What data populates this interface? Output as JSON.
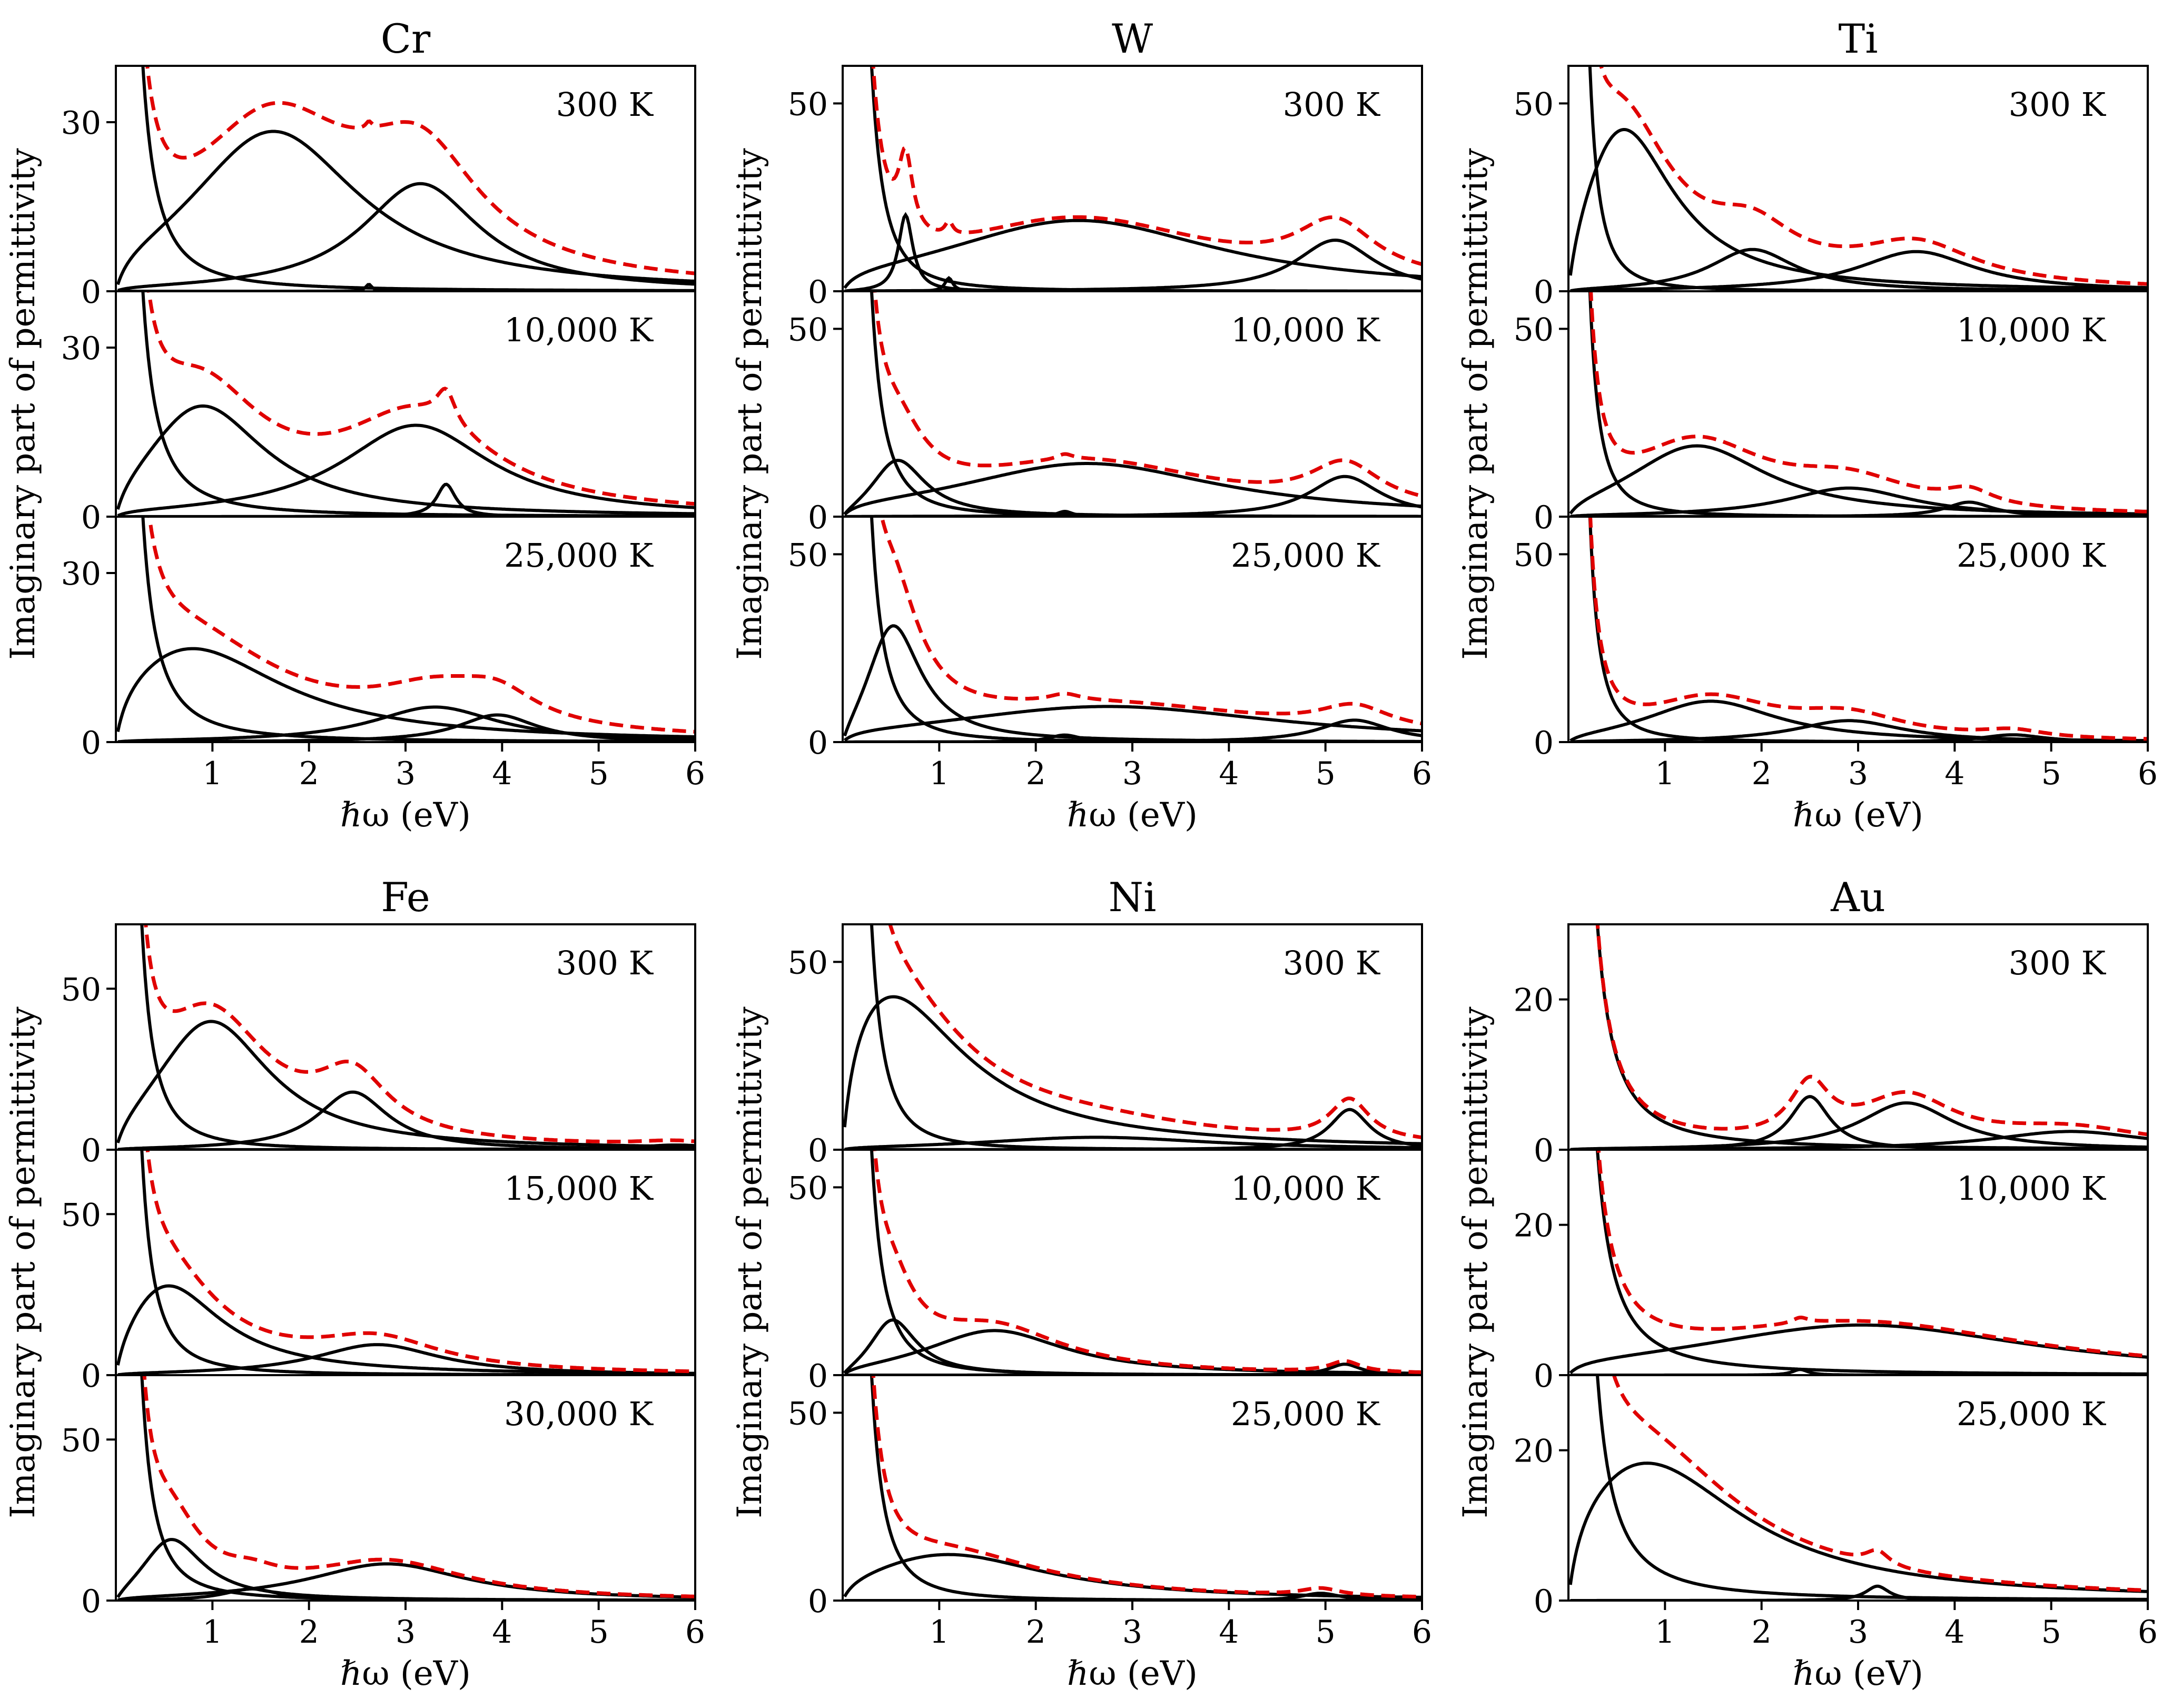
{
  "figure": {
    "ylabel": "Imaginary part of permittivity",
    "xlabel": "ℏω (eV)",
    "colors": {
      "components": "#000000",
      "total": "#e00000"
    }
  },
  "chart_data": [
    {
      "type": "line",
      "title": "Cr",
      "xlim": [
        0,
        6
      ],
      "xticks": [
        1,
        2,
        3,
        4,
        5,
        6
      ],
      "subplots": [
        {
          "label": "300 K",
          "ylim": [
            0,
            40
          ],
          "yticks": [
            0,
            30
          ],
          "drude": {
            "A": 35,
            "p": 1.9
          },
          "oscillators": [
            {
              "A": 31,
              "c": 1.6,
              "w": 1.1
            },
            {
              "A": 20,
              "c": 3.15,
              "w": 0.75
            },
            {
              "A": 1.3,
              "c": 2.62,
              "w": 0.04
            }
          ]
        },
        {
          "label": "10,000 K",
          "ylim": [
            0,
            40
          ],
          "yticks": [
            0,
            30
          ],
          "drude": {
            "A": 35,
            "p": 1.9
          },
          "oscillators": [
            {
              "A": 23,
              "c": 0.85,
              "w": 0.8
            },
            {
              "A": 17,
              "c": 3.1,
              "w": 0.95
            },
            {
              "A": 6,
              "c": 3.42,
              "w": 0.12
            }
          ]
        },
        {
          "label": "25,000 K",
          "ylim": [
            0,
            40
          ],
          "yticks": [
            0,
            30
          ],
          "drude": {
            "A": 35,
            "p": 1.9
          },
          "oscillators": [
            {
              "A": 20,
              "c": 0.65,
              "w": 1.2
            },
            {
              "A": 6.5,
              "c": 3.3,
              "w": 0.8
            },
            {
              "A": 5,
              "c": 3.95,
              "w": 0.5
            }
          ]
        }
      ]
    },
    {
      "type": "line",
      "title": "W",
      "xlim": [
        0,
        6
      ],
      "xticks": [
        1,
        2,
        3,
        4,
        5,
        6
      ],
      "subplots": [
        {
          "label": "300 K",
          "ylim": [
            0,
            60
          ],
          "yticks": [
            0,
            50
          ],
          "drude": {
            "A": 60,
            "p": 2.4
          },
          "oscillators": [
            {
              "A": 20,
              "c": 2.4,
              "w": 1.8
            },
            {
              "A": 14,
              "c": 5.1,
              "w": 0.5
            },
            {
              "A": 25,
              "c": 0.65,
              "w": 0.09
            },
            {
              "A": 4,
              "c": 1.1,
              "w": 0.05
            }
          ]
        },
        {
          "label": "10,000 K",
          "ylim": [
            0,
            60
          ],
          "yticks": [
            0,
            50
          ],
          "drude": {
            "A": 60,
            "p": 2.4
          },
          "oscillators": [
            {
              "A": 19,
              "c": 0.55,
              "w": 0.35
            },
            {
              "A": 15,
              "c": 2.5,
              "w": 1.7
            },
            {
              "A": 11,
              "c": 5.2,
              "w": 0.45
            },
            {
              "A": 1.5,
              "c": 2.3,
              "w": 0.1
            }
          ]
        },
        {
          "label": "25,000 K",
          "ylim": [
            0,
            60
          ],
          "yticks": [
            0,
            50
          ],
          "drude": {
            "A": 60,
            "p": 2.4
          },
          "oscillators": [
            {
              "A": 10,
              "c": 2.7,
              "w": 2.2
            },
            {
              "A": 6,
              "c": 5.3,
              "w": 0.45
            },
            {
              "A": 40,
              "c": 0.5,
              "w": 0.35
            },
            {
              "A": 2,
              "c": 2.3,
              "w": 0.2
            }
          ]
        }
      ]
    },
    {
      "type": "line",
      "title": "Ti",
      "xlim": [
        0,
        6
      ],
      "xticks": [
        1,
        2,
        3,
        4,
        5,
        6
      ],
      "subplots": [
        {
          "label": "300 K",
          "ylim": [
            0,
            60
          ],
          "yticks": [
            0,
            50
          ],
          "drude": {
            "A": 30,
            "p": 2.3
          },
          "oscillators": [
            {
              "A": 55,
              "c": 0.5,
              "w": 0.65
            },
            {
              "A": 12,
              "c": 1.9,
              "w": 0.55
            },
            {
              "A": 11,
              "c": 3.6,
              "w": 0.75
            }
          ]
        },
        {
          "label": "10,000 K",
          "ylim": [
            0,
            60
          ],
          "yticks": [
            0,
            50
          ],
          "drude": {
            "A": 30,
            "p": 2.3
          },
          "oscillators": [
            {
              "A": 21,
              "c": 1.3,
              "w": 0.9
            },
            {
              "A": 8,
              "c": 2.9,
              "w": 0.8
            },
            {
              "A": 4,
              "c": 4.15,
              "w": 0.3
            }
          ]
        },
        {
          "label": "25,000 K",
          "ylim": [
            0,
            60
          ],
          "yticks": [
            0,
            50
          ],
          "drude": {
            "A": 30,
            "p": 2.3
          },
          "oscillators": [
            {
              "A": 12,
              "c": 1.45,
              "w": 0.85
            },
            {
              "A": 6,
              "c": 2.9,
              "w": 0.7
            },
            {
              "A": 2,
              "c": 4.6,
              "w": 0.4
            }
          ]
        }
      ]
    },
    {
      "type": "line",
      "title": "Fe",
      "xlim": [
        0,
        6
      ],
      "xticks": [
        1,
        2,
        3,
        4,
        5,
        6
      ],
      "subplots": [
        {
          "label": "300 K",
          "ylim": [
            0,
            70
          ],
          "yticks": [
            0,
            50
          ],
          "drude": {
            "A": 55,
            "p": 2.2
          },
          "oscillators": [
            {
              "A": 46,
              "c": 0.95,
              "w": 0.75
            },
            {
              "A": 19,
              "c": 2.45,
              "w": 0.45
            },
            {
              "A": 1.5,
              "c": 5.8,
              "w": 0.5
            }
          ]
        },
        {
          "label": "15,000 K",
          "ylim": [
            0,
            70
          ],
          "yticks": [
            0,
            50
          ],
          "drude": {
            "A": 55,
            "p": 2.2
          },
          "oscillators": [
            {
              "A": 36,
              "c": 0.45,
              "w": 0.7
            },
            {
              "A": 10,
              "c": 2.7,
              "w": 0.8
            }
          ]
        },
        {
          "label": "30,000 K",
          "ylim": [
            0,
            70
          ],
          "yticks": [
            0,
            50
          ],
          "drude": {
            "A": 55,
            "p": 2.2
          },
          "oscillators": [
            {
              "A": 24,
              "c": 0.55,
              "w": 0.4
            },
            {
              "A": 12,
              "c": 2.8,
              "w": 1.0
            },
            {
              "A": 4,
              "c": 1.4,
              "w": 0.35
            }
          ]
        }
      ]
    },
    {
      "type": "line",
      "title": "Ni",
      "xlim": [
        0,
        6
      ],
      "xticks": [
        1,
        2,
        3,
        4,
        5,
        6
      ],
      "subplots": [
        {
          "label": "300 K",
          "ylim": [
            0,
            60
          ],
          "yticks": [
            0,
            50
          ],
          "drude": {
            "A": 60,
            "p": 2.4
          },
          "oscillators": [
            {
              "A": 55,
              "c": 0.3,
              "w": 1.0
            },
            {
              "A": 3.5,
              "c": 2.6,
              "w": 1.5
            },
            {
              "A": 11,
              "c": 5.25,
              "w": 0.25
            }
          ]
        },
        {
          "label": "10,000 K",
          "ylim": [
            0,
            60
          ],
          "yticks": [
            0,
            50
          ],
          "drude": {
            "A": 60,
            "p": 2.4
          },
          "oscillators": [
            {
              "A": 19,
              "c": 0.5,
              "w": 0.3
            },
            {
              "A": 13,
              "c": 1.55,
              "w": 0.9
            },
            {
              "A": 3,
              "c": 5.2,
              "w": 0.2
            }
          ]
        },
        {
          "label": "25,000 K",
          "ylim": [
            0,
            60
          ],
          "yticks": [
            0,
            50
          ],
          "drude": {
            "A": 60,
            "p": 2.4
          },
          "oscillators": [
            {
              "A": 14,
              "c": 1.0,
              "w": 1.3
            },
            {
              "A": 2,
              "c": 4.95,
              "w": 0.25
            }
          ]
        }
      ]
    },
    {
      "type": "line",
      "title": "Au",
      "xlim": [
        0,
        6
      ],
      "xticks": [
        1,
        2,
        3,
        4,
        5,
        6
      ],
      "subplots": [
        {
          "label": "300 K",
          "ylim": [
            0,
            30
          ],
          "yticks": [
            0,
            20
          ],
          "drude": {
            "A": 30,
            "p": 1.75
          },
          "oscillators": [
            {
              "A": 7.5,
              "c": 2.5,
              "w": 0.25
            },
            {
              "A": 6.5,
              "c": 3.5,
              "w": 0.6
            },
            {
              "A": 2.5,
              "c": 5.2,
              "w": 1.0
            }
          ]
        },
        {
          "label": "10,000 K",
          "ylim": [
            0,
            30
          ],
          "yticks": [
            0,
            20
          ],
          "drude": {
            "A": 30,
            "p": 1.75
          },
          "oscillators": [
            {
              "A": 7,
              "c": 3.0,
              "w": 2.2
            },
            {
              "A": 0.8,
              "c": 2.4,
              "w": 0.1
            }
          ]
        },
        {
          "label": "25,000 K",
          "ylim": [
            0,
            30
          ],
          "yticks": [
            0,
            20
          ],
          "drude": {
            "A": 30,
            "p": 1.75
          },
          "oscillators": [
            {
              "A": 22,
              "c": 0.65,
              "w": 1.3
            },
            {
              "A": 2,
              "c": 3.2,
              "w": 0.15
            }
          ]
        }
      ]
    }
  ]
}
